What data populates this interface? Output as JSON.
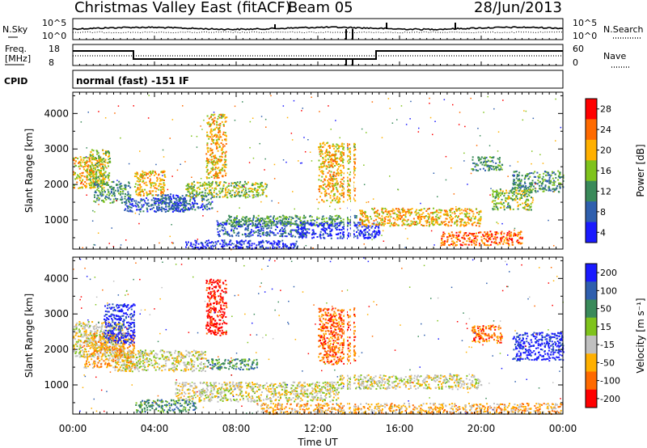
{
  "header": {
    "station": "Christmas Valley East (fitACF)",
    "beam": "Beam 05",
    "date": "28/Jun/2013"
  },
  "panels": {
    "nsky": {
      "left_label": "N.Sky",
      "right_label": "N.Search",
      "left_ticks": [
        "10^5",
        "10^0"
      ],
      "right_ticks": [
        "10^5",
        "10^0"
      ]
    },
    "freq": {
      "left_label_1": "Freq.",
      "left_label_2": "[MHz]",
      "right_label": "Nave",
      "left_ticks": [
        "18",
        "8"
      ],
      "right_ticks": [
        "60",
        "0"
      ]
    },
    "cpid": {
      "label": "CPID",
      "text": "normal (fast) -151 IF"
    }
  },
  "chart_data": [
    {
      "type": "heatmap",
      "name": "power",
      "ylabel": "Slant Range [km]",
      "xlabel": "Time UT",
      "ylim": [
        180,
        4600
      ],
      "xlim": [
        0,
        24
      ],
      "xticks": [
        "00:00",
        "04:00",
        "08:00",
        "12:00",
        "16:00",
        "20:00",
        "00:00"
      ],
      "yticks": [
        1000,
        2000,
        3000,
        4000
      ],
      "colorbar": {
        "label": "Power [dB]",
        "ticks": [
          "28",
          "24",
          "20",
          "16",
          "12",
          "8",
          "4"
        ],
        "colors": [
          "#ff0000",
          "#ff6a00",
          "#ffb000",
          "#7fc31c",
          "#3a8a5a",
          "#2f5fae",
          "#1a1aff"
        ]
      },
      "regions": [
        {
          "t": [
            0.0,
            1.5
          ],
          "r": [
            1900,
            2800
          ],
          "level": 2
        },
        {
          "t": [
            0.8,
            1.8
          ],
          "r": [
            2000,
            3000
          ],
          "level": 3
        },
        {
          "t": [
            1.0,
            2.8
          ],
          "r": [
            1500,
            2100
          ],
          "level": 4
        },
        {
          "t": [
            2.5,
            5.5
          ],
          "r": [
            1250,
            1650
          ],
          "level": 5
        },
        {
          "t": [
            3.0,
            4.5
          ],
          "r": [
            1700,
            2400
          ],
          "level": 2
        },
        {
          "t": [
            4.0,
            6.8
          ],
          "r": [
            1300,
            1750
          ],
          "level": 5
        },
        {
          "t": [
            5.5,
            9.5
          ],
          "r": [
            1650,
            2100
          ],
          "level": 3
        },
        {
          "t": [
            6.5,
            7.5
          ],
          "r": [
            2200,
            4000
          ],
          "level": 2
        },
        {
          "t": [
            7.0,
            11.5
          ],
          "r": [
            550,
            1000
          ],
          "level": 5
        },
        {
          "t": [
            7.5,
            14.0
          ],
          "r": [
            850,
            1150
          ],
          "level": 4
        },
        {
          "t": [
            11.0,
            15.0
          ],
          "r": [
            500,
            950
          ],
          "level": 6
        },
        {
          "t": [
            14.0,
            20.0
          ],
          "r": [
            850,
            1350
          ],
          "level": 2
        },
        {
          "t": [
            5.5,
            11.0
          ],
          "r": [
            200,
            450
          ],
          "level": 6
        },
        {
          "t": [
            18.0,
            22.0
          ],
          "r": [
            300,
            700
          ],
          "level": 1
        },
        {
          "t": [
            12.0,
            13.8
          ],
          "r": [
            1500,
            3200
          ],
          "level": 2
        },
        {
          "t": [
            19.5,
            21.0
          ],
          "r": [
            2400,
            2800
          ],
          "level": 4
        },
        {
          "t": [
            21.5,
            24.0
          ],
          "r": [
            1800,
            2400
          ],
          "level": 4
        },
        {
          "t": [
            20.5,
            22.5
          ],
          "r": [
            1300,
            1900
          ],
          "level": 3
        }
      ]
    },
    {
      "type": "heatmap",
      "name": "velocity",
      "ylabel": "Slant Range [km]",
      "xlabel": "Time UT",
      "ylim": [
        180,
        4600
      ],
      "xlim": [
        0,
        24
      ],
      "xticks": [
        "00:00",
        "04:00",
        "08:00",
        "12:00",
        "16:00",
        "20:00",
        "00:00"
      ],
      "yticks": [
        1000,
        2000,
        3000,
        4000
      ],
      "colorbar": {
        "label": "Velocity [m s^-1]",
        "ticks": [
          "200",
          "100",
          "50",
          "15",
          "-15",
          "-50",
          "-100",
          "-200"
        ],
        "colors": [
          "#1a1aff",
          "#2f5fae",
          "#3a8a5a",
          "#7fc31c",
          "#c0c0c0",
          "#ffb000",
          "#ff6a00",
          "#ff0000"
        ]
      },
      "regions": [
        {
          "t": [
            0.0,
            2.5
          ],
          "r": [
            1800,
            2800
          ],
          "level": 4
        },
        {
          "t": [
            2.0,
            6.5
          ],
          "r": [
            1400,
            2000
          ],
          "level": 4
        },
        {
          "t": [
            0.5,
            3.0
          ],
          "r": [
            1500,
            2500
          ],
          "level": 5
        },
        {
          "t": [
            6.5,
            9.0
          ],
          "r": [
            1450,
            1750
          ],
          "level": 2
        },
        {
          "t": [
            5.0,
            13.0
          ],
          "r": [
            550,
            1100
          ],
          "level": 4
        },
        {
          "t": [
            13.0,
            20.0
          ],
          "r": [
            900,
            1300
          ],
          "level": 4
        },
        {
          "t": [
            9.0,
            24.0
          ],
          "r": [
            200,
            500
          ],
          "level": 5
        },
        {
          "t": [
            3.0,
            6.0
          ],
          "r": [
            250,
            600
          ],
          "level": 2
        },
        {
          "t": [
            12.0,
            13.8
          ],
          "r": [
            1600,
            3200
          ],
          "level": 6
        },
        {
          "t": [
            21.5,
            24.0
          ],
          "r": [
            1700,
            2500
          ],
          "level": 0
        },
        {
          "t": [
            19.5,
            21.0
          ],
          "r": [
            2200,
            2700
          ],
          "level": 6
        },
        {
          "t": [
            6.5,
            7.5
          ],
          "r": [
            2400,
            4000
          ],
          "level": 7
        },
        {
          "t": [
            1.5,
            3.0
          ],
          "r": [
            2200,
            3300
          ],
          "level": 0
        }
      ]
    }
  ]
}
